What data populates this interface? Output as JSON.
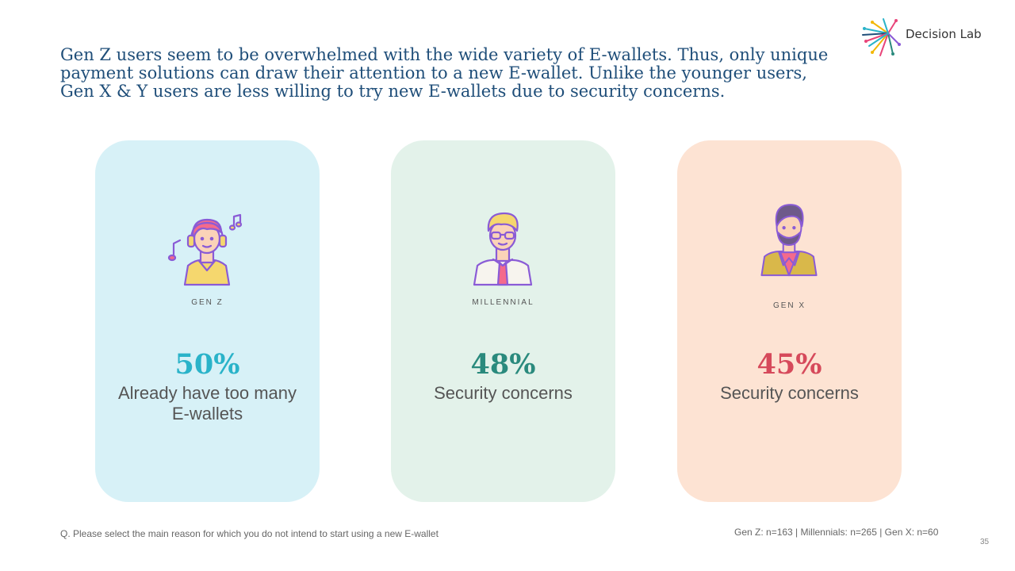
{
  "headline": [
    "Gen Z users seem to be overwhelmed with the wide variety of E-wallets. Thus, only unique",
    "payment solutions can draw their attention to a new E-wallet. Unlike the younger users,",
    "Gen X & Y users are less willing to try new E-wallets due to security concerns."
  ],
  "logo": {
    "text": "Decision Lab"
  },
  "cards": [
    {
      "generation": "GEN Z",
      "value": "50%",
      "reason": "Already have too many E-wallets",
      "color": "#2ab3c9",
      "bg": "#d7f1f7"
    },
    {
      "generation": "MILLENNIAL",
      "value": "48%",
      "reason": "Security concerns",
      "color": "#2a8a7d",
      "bg": "#e3f2ea"
    },
    {
      "generation": "GEN X",
      "value": "45%",
      "reason": "Security concerns",
      "color": "#d64a5b",
      "bg": "#fde3d3"
    }
  ],
  "footnote": "Q. Please select the main reason for which you do not intend to start using a new E-wallet",
  "samples": "Gen Z: n=163 | Millennials: n=265 | Gen X: n=60",
  "page_number": "35"
}
